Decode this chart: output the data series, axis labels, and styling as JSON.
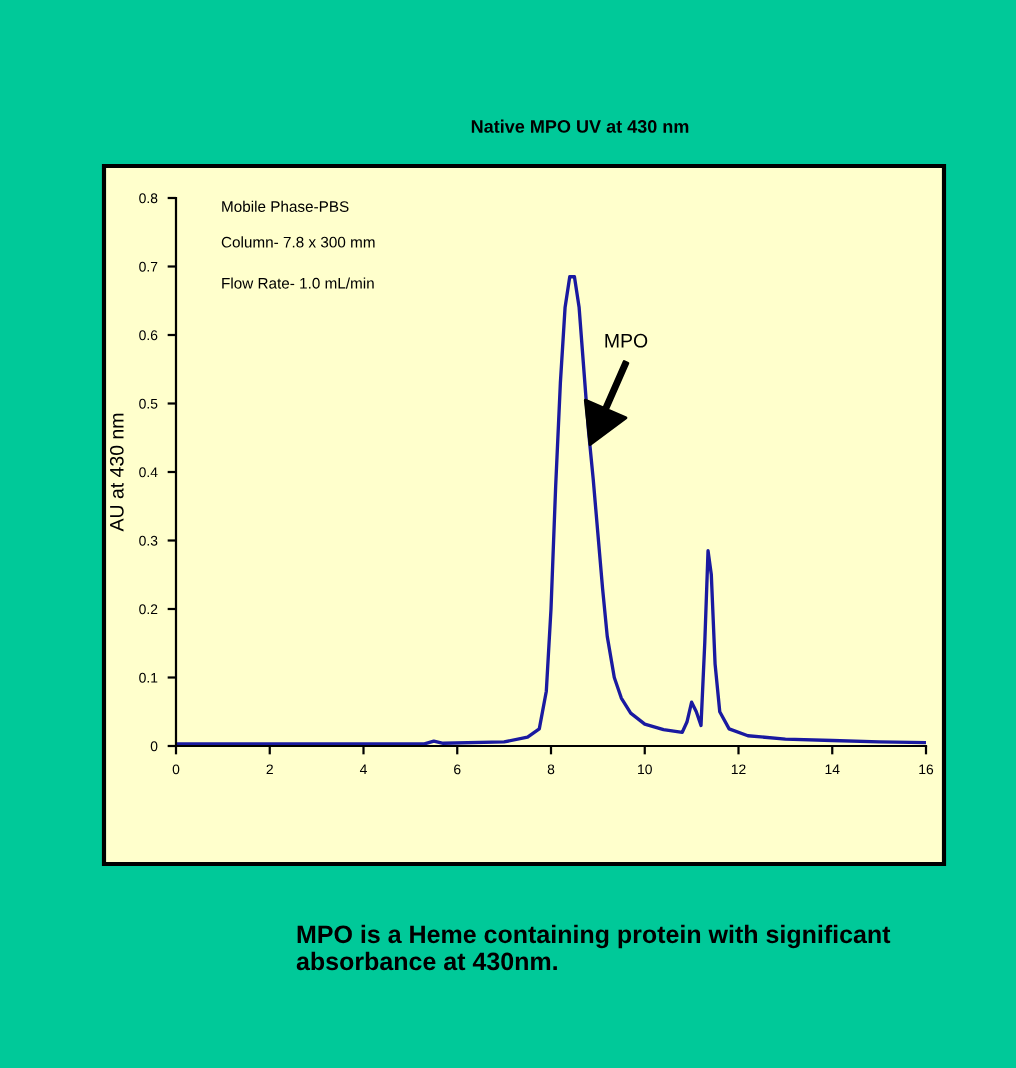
{
  "chart_data": {
    "type": "line",
    "title": "Native MPO UV at 430 nm",
    "ylabel": "AU at 430 nm",
    "x": [
      0,
      5.3,
      5.5,
      5.7,
      7.0,
      7.5,
      7.75,
      7.9,
      8.0,
      8.1,
      8.2,
      8.3,
      8.4,
      8.5,
      8.6,
      8.7,
      8.8,
      8.9,
      9.0,
      9.1,
      9.2,
      9.35,
      9.5,
      9.7,
      10.0,
      10.4,
      10.8,
      10.9,
      11.0,
      11.1,
      11.2,
      11.28,
      11.35,
      11.42,
      11.5,
      11.6,
      11.8,
      12.2,
      13,
      14,
      15,
      16
    ],
    "series": [
      {
        "color": "#1a1aa0",
        "values": [
          0.003,
          0.003,
          0.007,
          0.004,
          0.006,
          0.013,
          0.025,
          0.08,
          0.2,
          0.38,
          0.53,
          0.64,
          0.685,
          0.685,
          0.64,
          0.55,
          0.46,
          0.39,
          0.31,
          0.23,
          0.16,
          0.1,
          0.07,
          0.048,
          0.032,
          0.024,
          0.02,
          0.035,
          0.064,
          0.05,
          0.03,
          0.15,
          0.285,
          0.25,
          0.12,
          0.05,
          0.025,
          0.015,
          0.01,
          0.008,
          0.006,
          0.005
        ]
      }
    ],
    "xlim": [
      0,
      16
    ],
    "xticks": [
      0,
      2,
      4,
      6,
      8,
      10,
      12,
      14,
      16
    ],
    "ylim": [
      0,
      0.8
    ],
    "yticks": [
      0,
      0.1,
      0.2,
      0.3,
      0.4,
      0.5,
      0.6,
      0.7,
      0.8
    ],
    "grid": false,
    "legend": false,
    "marker": "none",
    "line_style": "solid",
    "annotations": [
      "Mobile Phase-PBS",
      "Column- 7.8 x 300 mm",
      "Flow Rate- 1.0 mL/min",
      "MPO",
      "MPO is a Heme containing protein with significant absorbance at 430nm."
    ]
  }
}
